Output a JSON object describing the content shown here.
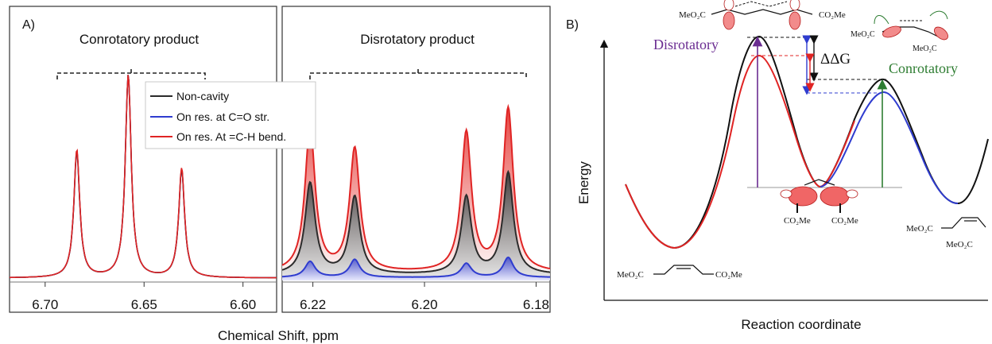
{
  "chart_data": [
    {
      "panel_label": "A)",
      "type": "line",
      "xlabel": "Chemical Shift, ppm",
      "ylabel": "",
      "x_reversed": true,
      "grid": false,
      "legend_position": "top-center",
      "subplots": [
        {
          "title": "Conrotatory product",
          "xlim": [
            6.718,
            6.583
          ],
          "ticks": [
            6.7,
            6.65,
            6.6
          ],
          "tick_labels": [
            "6.70",
            "6.65",
            "6.60"
          ],
          "peaks_ppm": [
            6.684,
            6.658,
            6.631
          ],
          "series": [
            {
              "name": "Non-cavity",
              "color": "#2b2b2b",
              "relative_intensities": [
                0.62,
                1.0,
                0.53
              ]
            },
            {
              "name": "On res. at C=O str.",
              "color": "#2f3ccf",
              "relative_intensities": [
                0.62,
                1.0,
                0.53
              ]
            },
            {
              "name": "On res. At =C-H bend.",
              "color": "#e02424",
              "relative_intensities": [
                0.63,
                1.0,
                0.54
              ]
            }
          ]
        },
        {
          "title": "Disrotatory product",
          "xlim": [
            6.2255,
            6.1775
          ],
          "ticks": [
            6.22,
            6.2,
            6.18
          ],
          "tick_labels": [
            "6.22",
            "6.20",
            "6.18"
          ],
          "peaks_ppm": [
            6.2205,
            6.2125,
            6.1925,
            6.185
          ],
          "series": [
            {
              "name": "Non-cavity",
              "color": "#2b2b2b",
              "relative_intensities": [
                0.46,
                0.39,
                0.39,
                0.51
              ]
            },
            {
              "name": "On res. at C=O str.",
              "color": "#2f3ccf",
              "relative_intensities": [
                0.08,
                0.09,
                0.07,
                0.1
              ]
            },
            {
              "name": "On res. At =C-H bend.",
              "color": "#e02424",
              "relative_intensities": [
                0.73,
                0.62,
                0.7,
                0.82
              ]
            }
          ]
        }
      ],
      "legend": [
        "Non-cavity",
        "On res. at C=O str.",
        "On res. At =C-H bend."
      ]
    },
    {
      "panel_label": "B)",
      "type": "line",
      "xlabel": "Reaction coordinate",
      "ylabel": "Energy",
      "labels": {
        "disrotatory": "Disrotatory",
        "conrotatory": "Conrotatory",
        "delta_g": "ΔΔG"
      },
      "molecules": {
        "reactant_left": "MeO₂C",
        "reactant_right": "CO₂Me",
        "intermediate_left": "CO₂Me",
        "intermediate_right": "CO₂Me",
        "product_upper": "MeO₂C",
        "product_lower": "MeO₂C",
        "ts_dis_left": "MeO₂C",
        "ts_dis_right": "CO₂Me",
        "ts_con_upper": "MeO₂C",
        "ts_con_lower": "MeO₂C"
      },
      "series": [
        {
          "name": "",
          "color": "#111111",
          "points": [
            [
              0,
              0.62
            ],
            [
              0.08,
              0.28
            ],
            [
              0.17,
              0.05
            ],
            [
              0.28,
              0.48
            ],
            [
              0.36,
              0.93
            ],
            [
              0.42,
              0.87
            ],
            [
              0.5,
              0.55
            ],
            [
              0.57,
              0.37
            ],
            [
              0.66,
              0.49
            ],
            [
              0.75,
              0.75
            ],
            [
              0.84,
              0.58
            ],
            [
              0.92,
              0.33
            ],
            [
              1,
              0.52
            ]
          ]
        },
        {
          "name": "",
          "color": "#e02424",
          "points": [
            [
              0,
              0.62
            ],
            [
              0.08,
              0.28
            ],
            [
              0.17,
              0.05
            ],
            [
              0.28,
              0.46
            ],
            [
              0.36,
              0.86
            ],
            [
              0.42,
              0.82
            ],
            [
              0.5,
              0.53
            ],
            [
              0.57,
              0.37
            ],
            [
              0.66,
              0.48
            ],
            [
              0.75,
              0.72
            ],
            [
              0.84,
              0.57
            ],
            [
              0.92,
              0.33
            ],
            [
              1,
              0.52
            ]
          ]
        },
        {
          "name": "",
          "color": "#2f3ccf",
          "points": [
            [
              0,
              0.62
            ],
            [
              0.08,
              0.28
            ],
            [
              0.17,
              0.05
            ],
            [
              0.28,
              0.48
            ],
            [
              0.36,
              0.93
            ],
            [
              0.42,
              0.87
            ],
            [
              0.5,
              0.55
            ],
            [
              0.57,
              0.37
            ],
            [
              0.66,
              0.46
            ],
            [
              0.75,
              0.69
            ],
            [
              0.84,
              0.58
            ],
            [
              0.92,
              0.33
            ],
            [
              1,
              0.52
            ]
          ]
        }
      ]
    }
  ]
}
